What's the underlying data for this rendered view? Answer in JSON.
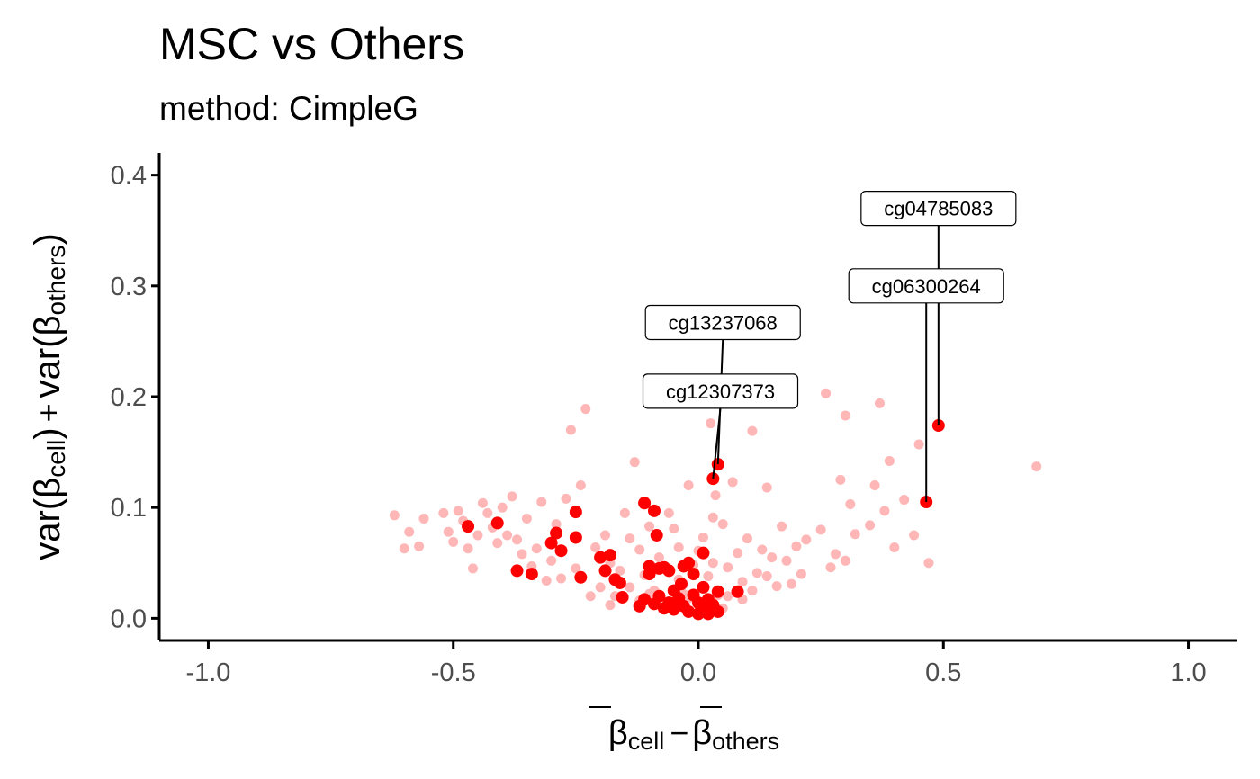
{
  "chart_data": {
    "type": "scatter",
    "title": "MSC vs Others",
    "subtitle": "method: CimpleG",
    "xlabel": {
      "beta": "β",
      "cell": "cell",
      "minus": "−",
      "others": "others"
    },
    "ylabel": {
      "var": "var",
      "beta": "β",
      "cell": "cell",
      "plus": "+",
      "others": "others"
    },
    "xlim": [
      -1.1,
      1.1
    ],
    "ylim": [
      -0.02,
      0.42
    ],
    "x_ticks": [
      -1.0,
      -0.5,
      0.0,
      0.5,
      1.0
    ],
    "x_tick_labels": [
      "-1.0",
      "-0.5",
      "0.0",
      "0.5",
      "1.0"
    ],
    "y_ticks": [
      0.0,
      0.1,
      0.2,
      0.3,
      0.4
    ],
    "y_tick_labels": [
      "0.0",
      "0.1",
      "0.2",
      "0.3",
      "0.4"
    ],
    "grid": false,
    "legend": "none",
    "colors": {
      "background_points": "#ffb6b6",
      "highlight_points": "#ff0000",
      "axis": "#000000",
      "tick_text": "#4d4d4d"
    },
    "series": [
      {
        "role": "background",
        "points": [
          [
            -0.62,
            0.093
          ],
          [
            -0.6,
            0.063
          ],
          [
            -0.59,
            0.078
          ],
          [
            -0.57,
            0.065
          ],
          [
            -0.56,
            0.09
          ],
          [
            -0.52,
            0.095
          ],
          [
            -0.51,
            0.078
          ],
          [
            -0.5,
            0.069
          ],
          [
            -0.49,
            0.097
          ],
          [
            -0.48,
            0.088
          ],
          [
            -0.47,
            0.063
          ],
          [
            -0.46,
            0.045
          ],
          [
            -0.45,
            0.075
          ],
          [
            -0.44,
            0.104
          ],
          [
            -0.43,
            0.095
          ],
          [
            -0.42,
            0.082
          ],
          [
            -0.41,
            0.068
          ],
          [
            -0.4,
            0.1
          ],
          [
            -0.39,
            0.075
          ],
          [
            -0.38,
            0.11
          ],
          [
            -0.37,
            0.071
          ],
          [
            -0.36,
            0.058
          ],
          [
            -0.35,
            0.09
          ],
          [
            -0.34,
            0.047
          ],
          [
            -0.33,
            0.063
          ],
          [
            -0.32,
            0.105
          ],
          [
            -0.31,
            0.034
          ],
          [
            -0.3,
            0.052
          ],
          [
            -0.29,
            0.085
          ],
          [
            -0.28,
            0.036
          ],
          [
            -0.27,
            0.108
          ],
          [
            -0.26,
            0.17
          ],
          [
            -0.25,
            0.045
          ],
          [
            -0.24,
            0.12
          ],
          [
            -0.23,
            0.189
          ],
          [
            -0.22,
            0.02
          ],
          [
            -0.21,
            0.064
          ],
          [
            -0.2,
            0.028
          ],
          [
            -0.19,
            0.075
          ],
          [
            -0.18,
            0.05
          ],
          [
            -0.17,
            0.02
          ],
          [
            -0.16,
            0.043
          ],
          [
            -0.15,
            0.095
          ],
          [
            -0.14,
            0.072
          ],
          [
            -0.13,
            0.141
          ],
          [
            -0.12,
            0.062
          ],
          [
            -0.11,
            0.039
          ],
          [
            -0.1,
            0.083
          ],
          [
            -0.09,
            0.025
          ],
          [
            -0.08,
            0.055
          ],
          [
            -0.07,
            0.045
          ],
          [
            -0.06,
            0.095
          ],
          [
            -0.05,
            0.081
          ],
          [
            -0.04,
            0.064
          ],
          [
            -0.03,
            0.031
          ],
          [
            -0.02,
            0.12
          ],
          [
            -0.01,
            0.048
          ],
          [
            0.0,
            0.061
          ],
          [
            0.01,
            0.073
          ],
          [
            0.02,
            0.038
          ],
          [
            0.025,
            0.176
          ],
          [
            0.03,
            0.091
          ],
          [
            0.035,
            0.111
          ],
          [
            0.04,
            0.021
          ],
          [
            0.05,
            0.085
          ],
          [
            0.06,
            0.046
          ],
          [
            0.07,
            0.123
          ],
          [
            0.08,
            0.059
          ],
          [
            0.09,
            0.033
          ],
          [
            0.1,
            0.072
          ],
          [
            0.11,
            0.169
          ],
          [
            0.12,
            0.041
          ],
          [
            0.13,
            0.062
          ],
          [
            0.14,
            0.118
          ],
          [
            0.15,
            0.055
          ],
          [
            0.16,
            0.029
          ],
          [
            0.17,
            0.083
          ],
          [
            0.18,
            0.052
          ],
          [
            0.19,
            0.031
          ],
          [
            0.2,
            0.065
          ],
          [
            0.21,
            0.04
          ],
          [
            0.22,
            0.071
          ],
          [
            0.25,
            0.08
          ],
          [
            0.26,
            0.203
          ],
          [
            0.27,
            0.046
          ],
          [
            0.28,
            0.058
          ],
          [
            0.29,
            0.125
          ],
          [
            0.3,
            0.183
          ],
          [
            0.3,
            0.052
          ],
          [
            0.31,
            0.103
          ],
          [
            0.32,
            0.076
          ],
          [
            0.35,
            0.084
          ],
          [
            0.36,
            0.12
          ],
          [
            0.37,
            0.194
          ],
          [
            0.38,
            0.097
          ],
          [
            0.39,
            0.142
          ],
          [
            0.4,
            0.064
          ],
          [
            0.42,
            0.107
          ],
          [
            0.44,
            0.075
          ],
          [
            0.45,
            0.157
          ],
          [
            0.47,
            0.05
          ],
          [
            0.69,
            0.137
          ],
          [
            -0.05,
            0.012
          ],
          [
            -0.04,
            0.035
          ],
          [
            -0.03,
            0.022
          ],
          [
            -0.02,
            0.018
          ],
          [
            0.02,
            0.014
          ],
          [
            0.03,
            0.05
          ],
          [
            0.06,
            0.02
          ],
          [
            0.09,
            0.017
          ],
          [
            0.11,
            0.025
          ],
          [
            -0.12,
            0.016
          ],
          [
            -0.14,
            0.028
          ],
          [
            -0.1,
            0.022
          ],
          [
            0.14,
            0.038
          ],
          [
            -0.18,
            0.012
          ],
          [
            0.05,
            0.009
          ]
        ]
      },
      {
        "role": "highlight",
        "points": [
          [
            -0.47,
            0.083
          ],
          [
            -0.41,
            0.086
          ],
          [
            -0.37,
            0.043
          ],
          [
            -0.34,
            0.04
          ],
          [
            -0.3,
            0.068
          ],
          [
            -0.29,
            0.077
          ],
          [
            -0.28,
            0.061
          ],
          [
            -0.25,
            0.096
          ],
          [
            -0.25,
            0.073
          ],
          [
            -0.24,
            0.037
          ],
          [
            -0.2,
            0.055
          ],
          [
            -0.19,
            0.043
          ],
          [
            -0.18,
            0.057
          ],
          [
            -0.17,
            0.035
          ],
          [
            -0.16,
            0.032
          ],
          [
            -0.155,
            0.019
          ],
          [
            -0.11,
            0.104
          ],
          [
            -0.1,
            0.047
          ],
          [
            -0.09,
            0.097
          ],
          [
            -0.085,
            0.075
          ],
          [
            -0.08,
            0.045
          ],
          [
            -0.06,
            0.043
          ],
          [
            -0.03,
            0.047
          ],
          [
            -0.02,
            0.05
          ],
          [
            -0.01,
            0.04
          ],
          [
            0.01,
            0.059
          ],
          [
            0.03,
            0.126
          ],
          [
            0.04,
            0.139
          ],
          [
            0.08,
            0.024
          ],
          [
            0.465,
            0.105
          ],
          [
            0.49,
            0.174
          ],
          [
            -0.12,
            0.011
          ],
          [
            -0.11,
            0.017
          ],
          [
            -0.09,
            0.013
          ],
          [
            -0.08,
            0.02
          ],
          [
            -0.07,
            0.009
          ],
          [
            -0.06,
            0.014
          ],
          [
            -0.05,
            0.025
          ],
          [
            -0.05,
            0.008
          ],
          [
            -0.04,
            0.018
          ],
          [
            -0.035,
            0.031
          ],
          [
            -0.03,
            0.011
          ],
          [
            -0.02,
            0.006
          ],
          [
            -0.01,
            0.021
          ],
          [
            0.0,
            0.004
          ],
          [
            0.0,
            0.014
          ],
          [
            0.01,
            0.028
          ],
          [
            0.01,
            0.008
          ],
          [
            0.02,
            0.017
          ],
          [
            0.02,
            0.004
          ],
          [
            0.03,
            0.012
          ],
          [
            0.04,
            0.024
          ],
          [
            0.04,
            0.006
          ],
          [
            -0.1,
            0.04
          ],
          [
            -0.07,
            0.046
          ]
        ]
      }
    ],
    "annotations": [
      {
        "label": "cg04785083",
        "x": 0.49,
        "y": 0.174,
        "label_x": 0.49,
        "label_y": 0.37
      },
      {
        "label": "cg06300264",
        "x": 0.465,
        "y": 0.105,
        "label_x": 0.465,
        "label_y": 0.3
      },
      {
        "label": "cg13237068",
        "x": 0.04,
        "y": 0.139,
        "label_x": 0.05,
        "label_y": 0.267
      },
      {
        "label": "cg12307373",
        "x": 0.03,
        "y": 0.126,
        "label_x": 0.045,
        "label_y": 0.205
      }
    ]
  }
}
